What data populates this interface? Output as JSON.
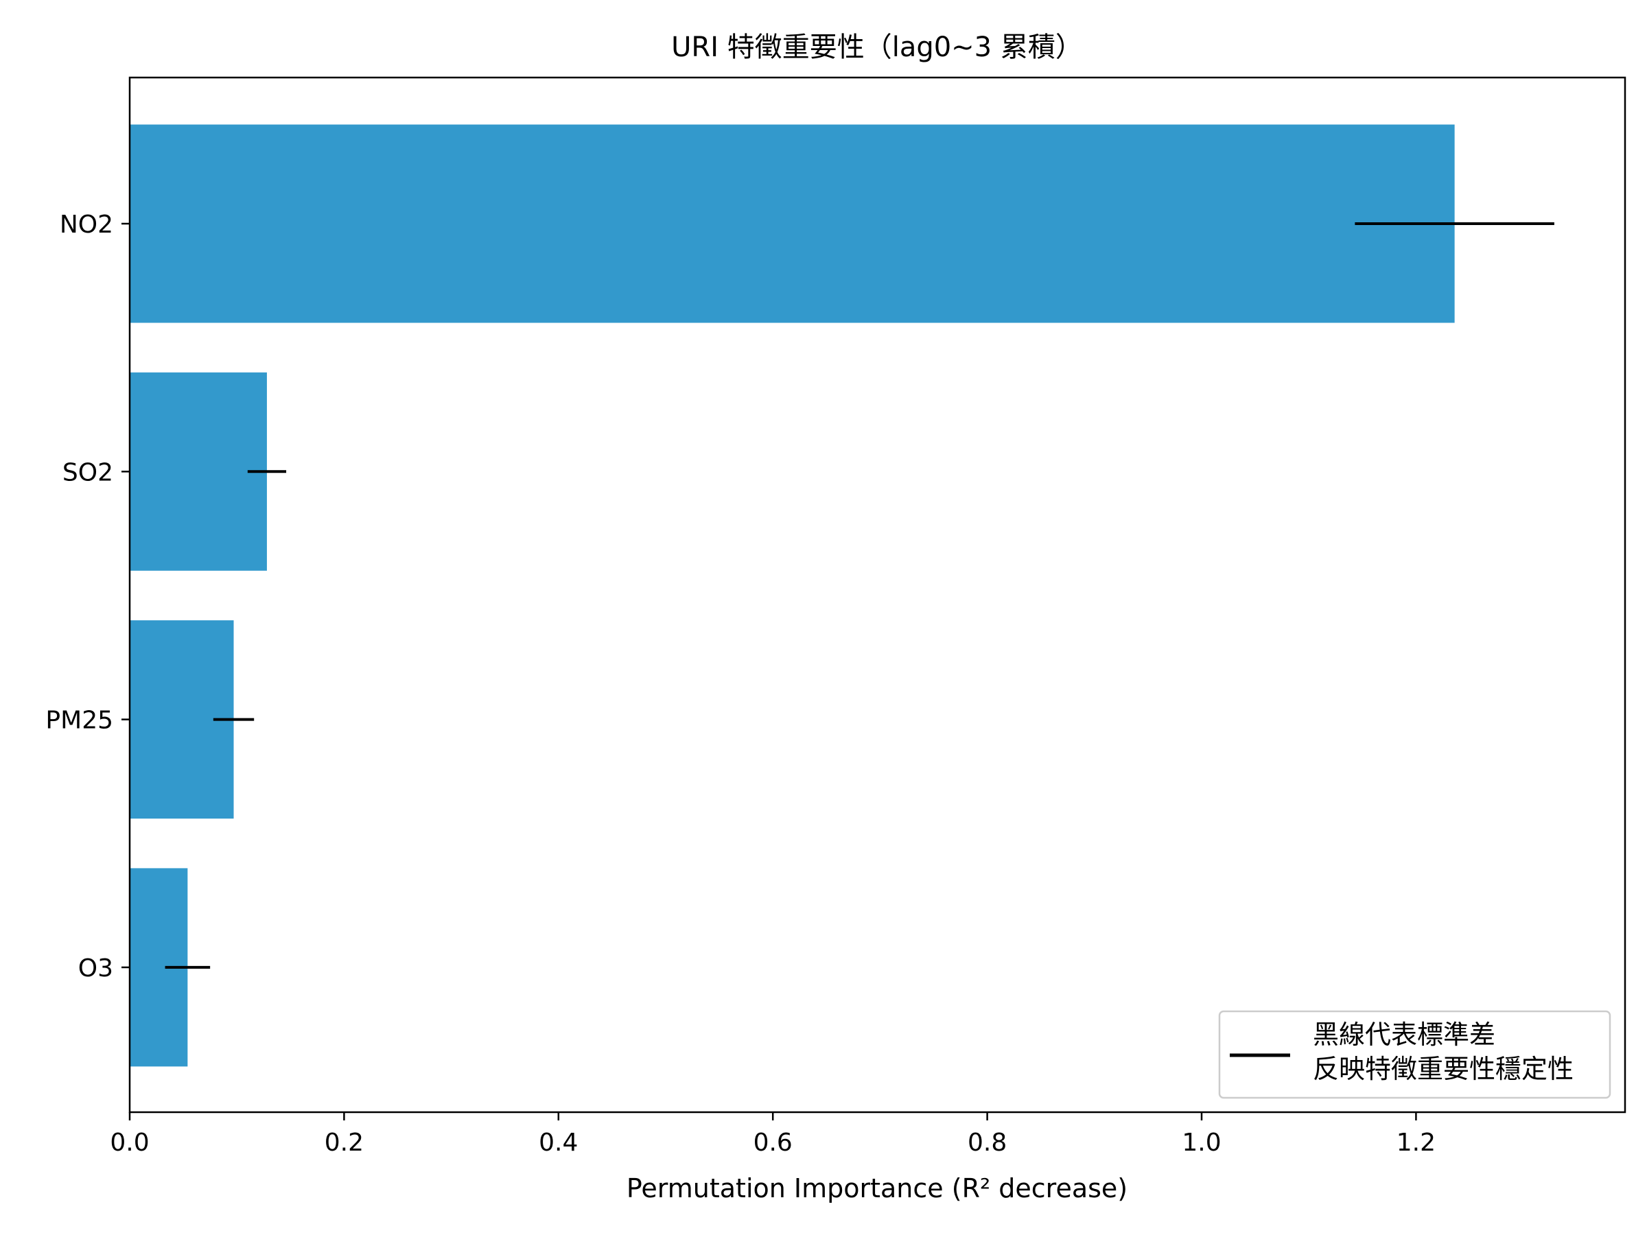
{
  "chart_data": {
    "type": "bar",
    "orientation": "horizontal",
    "title": "URI 特徵重要性（lag0~3 累積）",
    "xlabel": "Permutation Importance (R² decrease)",
    "ylabel": "",
    "categories": [
      "NO2",
      "SO2",
      "PM25",
      "O3"
    ],
    "values": [
      1.236,
      0.128,
      0.097,
      0.054
    ],
    "error": [
      0.093,
      0.018,
      0.019,
      0.021
    ],
    "xlim": [
      0.0,
      1.395
    ],
    "xticks": [
      0.0,
      0.2,
      0.4,
      0.6,
      0.8,
      1.0,
      1.2
    ],
    "xtick_labels": [
      "0.0",
      "0.2",
      "0.4",
      "0.6",
      "0.8",
      "1.0",
      "1.2"
    ],
    "grid": false,
    "bar_color": "#3399cc",
    "error_color": "#000000",
    "legend": {
      "placement": "lower-right",
      "entries": [
        {
          "lines": [
            "黑線代表標準差",
            "反映特徵重要性穩定性"
          ],
          "marker": "line",
          "color": "#000000"
        }
      ]
    }
  }
}
